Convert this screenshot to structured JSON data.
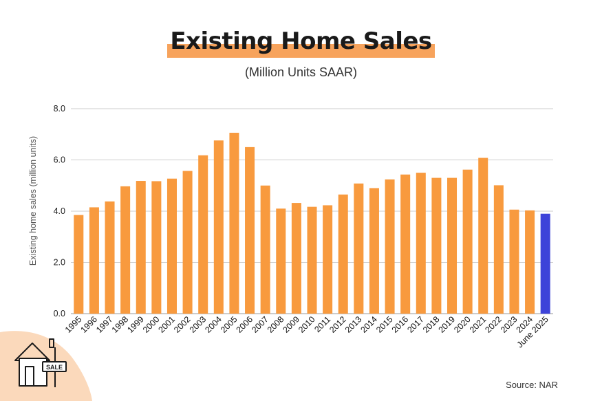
{
  "title": "Existing Home Sales",
  "subtitle": "(Million Units SAAR)",
  "source": "Source: NAR",
  "badge_text": "SALE",
  "colors": {
    "bar": "#f89a3e",
    "highlight_bar": "#3d43d9",
    "title_highlight": "#f7a35c",
    "grid": "#cccccc",
    "decor": "#fbd9bb"
  },
  "chart_data": {
    "type": "bar",
    "title": "Existing Home Sales",
    "subtitle": "(Million Units SAAR)",
    "ylabel": "Existing home sales (million units)",
    "xlabel": "",
    "ylim": [
      0,
      8
    ],
    "yticks": [
      "0.0",
      "2.0",
      "4.0",
      "6.0",
      "8.0"
    ],
    "grid": true,
    "categories": [
      "1995",
      "1996",
      "1997",
      "1998",
      "1999",
      "2000",
      "2001",
      "2002",
      "2003",
      "2004",
      "2005",
      "2006",
      "2007",
      "2008",
      "2009",
      "2010",
      "2011",
      "2012",
      "2013",
      "2014",
      "2015",
      "2016",
      "2017",
      "2018",
      "2019",
      "2020",
      "2021",
      "2022",
      "2023",
      "2024",
      "June 2025"
    ],
    "values": [
      3.85,
      4.15,
      4.38,
      4.97,
      5.18,
      5.17,
      5.27,
      5.57,
      6.18,
      6.76,
      7.06,
      6.5,
      5.0,
      4.1,
      4.32,
      4.17,
      4.23,
      4.65,
      5.08,
      4.9,
      5.24,
      5.43,
      5.5,
      5.3,
      5.3,
      5.62,
      6.08,
      5.01,
      4.06,
      4.03,
      3.9
    ],
    "highlight_index": 30
  }
}
